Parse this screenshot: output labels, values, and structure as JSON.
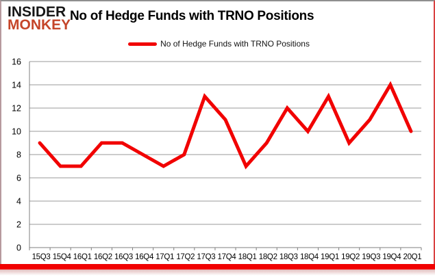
{
  "header": {
    "logo_line1": "INSIDER",
    "logo_line2": "MONKEY",
    "title": "No of Hedge Funds with TRNO Positions"
  },
  "legend": {
    "label": "No of Hedge Funds with TRNO Positions"
  },
  "colors": {
    "series_line": "#f10000",
    "accent_bar": "#f10000",
    "logo_insider": "#161616",
    "logo_monkey": "#c54529",
    "gridline": "#999999",
    "axis": "#7f7f7f",
    "label_text": "#000000"
  },
  "chart_data": {
    "type": "line",
    "title": "No of Hedge Funds with TRNO Positions",
    "categories": [
      "15Q3",
      "15Q4",
      "16Q1",
      "16Q2",
      "16Q3",
      "16Q4",
      "17Q1",
      "17Q2",
      "17Q3",
      "17Q4",
      "18Q1",
      "18Q2",
      "18Q3",
      "18Q4",
      "19Q1",
      "19Q2",
      "19Q3",
      "19Q4",
      "20Q1"
    ],
    "values": [
      9,
      7,
      7,
      9,
      9,
      8,
      7,
      8,
      13,
      11,
      7,
      9,
      12,
      10,
      13,
      9,
      11,
      14,
      10
    ],
    "xlabel": "",
    "ylabel": "",
    "ylim": [
      0,
      16
    ],
    "ytick_step": 2,
    "grid": true,
    "legend_position": "top",
    "series_name": "No of Hedge Funds with TRNO Positions"
  }
}
